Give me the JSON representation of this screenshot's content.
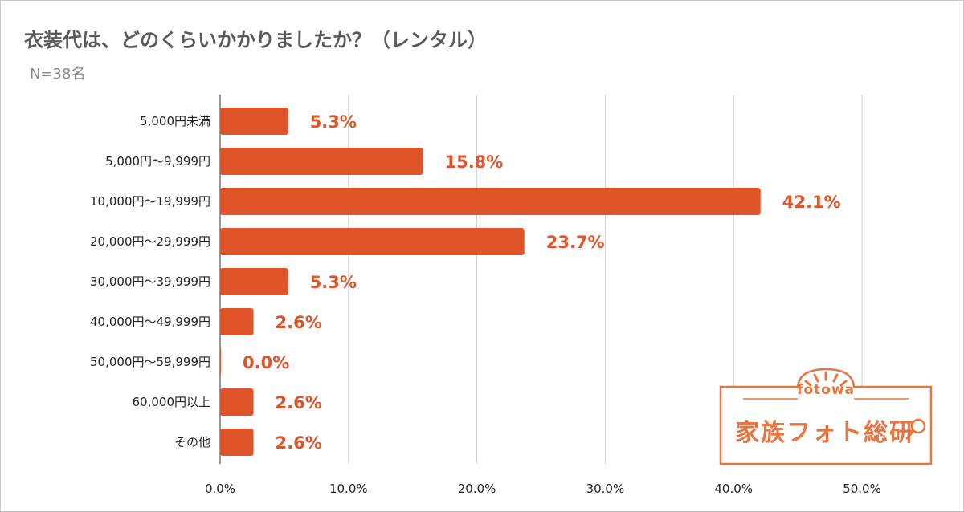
{
  "title": "衣装代は、どのくらいかかりましたか？（レンタル）",
  "subtitle": "N=38名",
  "colors": {
    "bar": "#e0542a",
    "label": "#e0542a",
    "grid": "#d0d0d0",
    "logo": "#e8743f"
  },
  "logo": {
    "brand": "fotowa",
    "name": "家族フォト総研"
  },
  "chart_data": {
    "type": "bar",
    "orientation": "horizontal",
    "categories": [
      "5,000円未満",
      "5,000円～9,999円",
      "10,000円～19,999円",
      "20,000円～29,999円",
      "30,000円～39,999円",
      "40,000円～49,999円",
      "50,000円～59,999円",
      "60,000円以上",
      "その他"
    ],
    "values": [
      5.3,
      15.8,
      42.1,
      23.7,
      5.3,
      2.6,
      0.0,
      2.6,
      2.6
    ],
    "value_labels": [
      "5.3%",
      "15.8%",
      "42.1%",
      "23.7%",
      "5.3%",
      "2.6%",
      "0.0%",
      "2.6%",
      "2.6%"
    ],
    "xticks": [
      "0.0%",
      "10.0%",
      "20.0%",
      "30.0%",
      "40.0%",
      "50.0%"
    ],
    "xlim": [
      0,
      50
    ],
    "grid": true,
    "legend": "none"
  }
}
